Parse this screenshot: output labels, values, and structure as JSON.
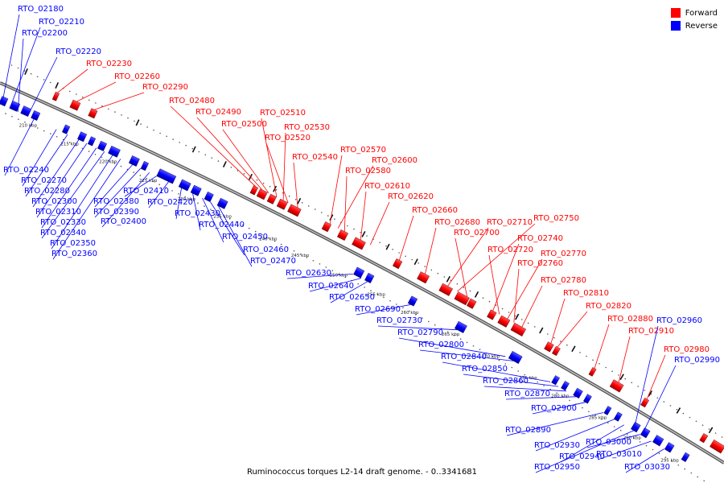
{
  "legend": [
    {
      "label": "Forward",
      "color": "#ff0000"
    },
    {
      "label": "Reverse",
      "color": "#0000ff"
    }
  ],
  "caption": "Ruminococcus torques L2-14 draft genome. - 0..3341681",
  "colors": {
    "forward": "#ff0000",
    "reverse": "#0000ff",
    "backbone": "#808080"
  },
  "ticks": [
    "210 kbp",
    "215 kbp",
    "220 kbp",
    "225 kbp",
    "230 kbp",
    "235 kbp",
    "240 kbp",
    "245 kbp",
    "250 kbp",
    "255 kbp",
    "260 kbp",
    "265 kbp",
    "270 kbp",
    "275 kbp",
    "280 kbp",
    "285 kbp",
    "290 kbp",
    "295 kbp"
  ],
  "forward_labels": [
    "RTO_02230",
    "RTO_02260",
    "RTO_02290",
    "RTO_02480",
    "RTO_02490",
    "RTO_02500",
    "RTO_02510",
    "RTO_02530",
    "RTO_02520",
    "RTO_02540",
    "RTO_02570",
    "RTO_02600",
    "RTO_02580",
    "RTO_02610",
    "RTO_02620",
    "RTO_02660",
    "RTO_02680",
    "RTO_02710",
    "RTO_02750",
    "RTO_02700",
    "RTO_02740",
    "RTO_02720",
    "RTO_02770",
    "RTO_02760",
    "RTO_02780",
    "RTO_02810",
    "RTO_02820",
    "RTO_02880",
    "RTO_02910",
    "RTO_02980"
  ],
  "reverse_labels": [
    "RTO_02180",
    "RTO_02210",
    "RTO_02200",
    "RTO_02220",
    "RTO_02240",
    "RTO_02270",
    "RTO_02280",
    "RTO_02300",
    "RTO_02310",
    "RTO_02330",
    "RTO_02340",
    "RTO_02350",
    "RTO_02360",
    "RTO_02380",
    "RTO_02390",
    "RTO_02400",
    "RTO_02410",
    "RTO_02420",
    "RTO_02430",
    "RTO_02440",
    "RTO_02450",
    "RTO_02460",
    "RTO_02470",
    "RTO_02630",
    "RTO_02640",
    "RTO_02650",
    "RTO_02690",
    "RTO_02730",
    "RTO_02790",
    "RTO_02800",
    "RTO_02840",
    "RTO_02850",
    "RTO_02860",
    "RTO_02870",
    "RTO_02900",
    "RTO_02890",
    "RTO_02930",
    "RTO_02940",
    "RTO_02950",
    "RTO_03000",
    "RTO_03010",
    "RTO_03030",
    "RTO_02960",
    "RTO_02990"
  ]
}
